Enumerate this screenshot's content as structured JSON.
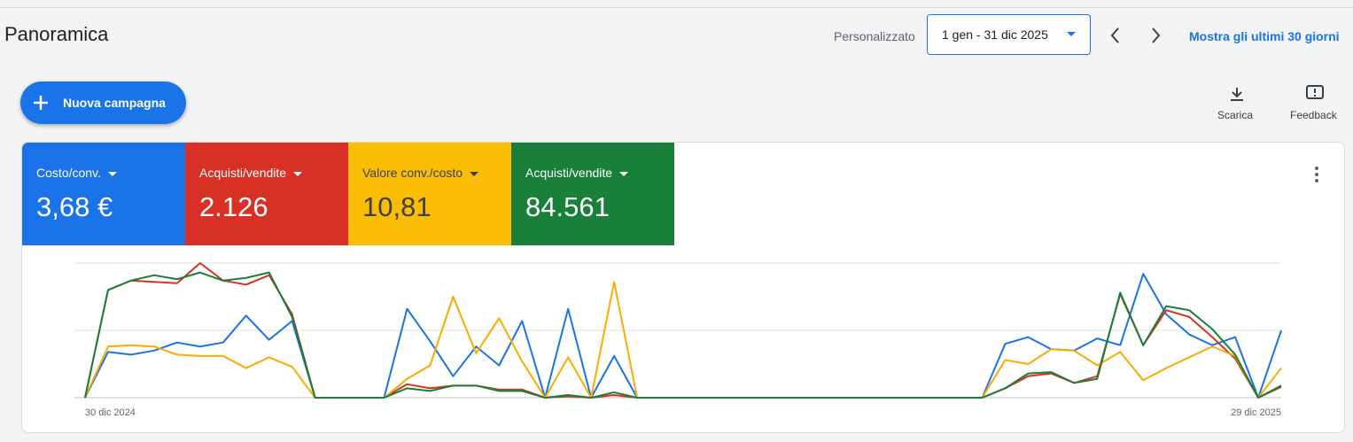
{
  "header": {
    "title": "Panoramica",
    "range_type": "Personalizzato",
    "date_range": "1 gen - 31 dic 2025",
    "last_30": "Mostra gli ultimi 30 giorni"
  },
  "toolbar": {
    "new_campaign": "Nuova campagna",
    "download": "Scarica",
    "feedback": "Feedback"
  },
  "chart_data": {
    "type": "line",
    "categories": [
      "30 dic 2024",
      null,
      null,
      null,
      null,
      null,
      null,
      null,
      null,
      null,
      null,
      null,
      null,
      null,
      null,
      null,
      null,
      null,
      null,
      null,
      null,
      null,
      null,
      null,
      null,
      null,
      null,
      null,
      null,
      null,
      null,
      null,
      null,
      null,
      null,
      null,
      null,
      null,
      null,
      null,
      null,
      null,
      null,
      null,
      null,
      null,
      null,
      null,
      null,
      null,
      null,
      null,
      "29 dic 2025"
    ],
    "ylim": [
      0,
      100
    ],
    "yticks": [
      0,
      50,
      100
    ],
    "grid": true,
    "series": [
      {
        "name": "Costo/conv.",
        "total": "3,68 €",
        "color": "#1a73e8",
        "text_color": "#ffffff",
        "values": [
          0,
          34,
          32,
          35,
          41,
          38,
          41,
          61,
          43,
          57,
          0,
          0,
          0,
          0,
          66,
          42,
          16,
          38,
          24,
          57,
          0,
          66,
          0,
          31,
          0,
          0,
          0,
          0,
          0,
          0,
          0,
          0,
          0,
          0,
          0,
          0,
          0,
          0,
          0,
          0,
          40,
          45,
          36,
          35,
          44,
          39,
          92,
          62,
          47,
          39,
          45,
          0,
          50
        ]
      },
      {
        "name": "Acquisti/vendite",
        "total": "2.126",
        "color": "#d93025",
        "text_color": "#ffffff",
        "values": [
          0,
          80,
          87,
          86,
          85,
          100,
          87,
          84,
          91,
          62,
          0,
          0,
          0,
          0,
          10,
          7,
          9,
          9,
          6,
          6,
          0,
          1,
          0,
          2,
          0,
          0,
          0,
          0,
          0,
          0,
          0,
          0,
          0,
          0,
          0,
          0,
          0,
          0,
          0,
          0,
          7,
          16,
          18,
          11,
          16,
          77,
          39,
          65,
          60,
          45,
          29,
          0,
          8
        ]
      },
      {
        "name": "Valore conv./costo",
        "total": "10,81",
        "color": "#fbbc04",
        "text_color": "#3c4043",
        "values": [
          0,
          38,
          39,
          38,
          32,
          31,
          31,
          22,
          30,
          23,
          0,
          0,
          0,
          0,
          14,
          24,
          75,
          33,
          59,
          27,
          0,
          30,
          0,
          86,
          0,
          0,
          0,
          0,
          0,
          0,
          0,
          0,
          0,
          0,
          0,
          0,
          0,
          0,
          0,
          0,
          28,
          25,
          36,
          35,
          24,
          34,
          13,
          22,
          30,
          38,
          31,
          0,
          22
        ]
      },
      {
        "name": "Acquisti/vendite",
        "total": "84.561",
        "color": "#188038",
        "text_color": "#ffffff",
        "values": [
          0,
          80,
          87,
          91,
          88,
          93,
          87,
          89,
          93,
          60,
          0,
          0,
          0,
          0,
          7,
          5,
          9,
          9,
          5,
          5,
          0,
          2,
          0,
          4,
          0,
          0,
          0,
          0,
          0,
          0,
          0,
          0,
          0,
          0,
          0,
          0,
          0,
          0,
          0,
          0,
          7,
          18,
          19,
          11,
          14,
          78,
          39,
          68,
          65,
          51,
          32,
          0,
          9
        ]
      }
    ]
  }
}
